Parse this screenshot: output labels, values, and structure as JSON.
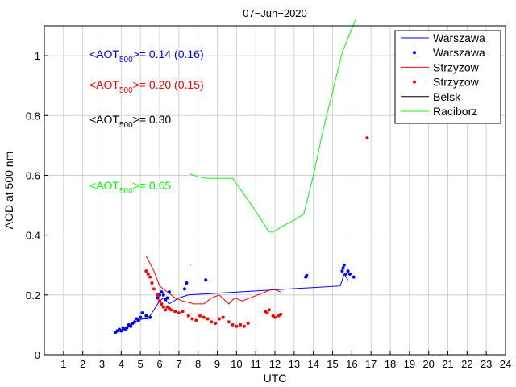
{
  "chart_data": {
    "type": "line",
    "title": "07−Jun−2020",
    "xlabel": "UTC",
    "ylabel": "AOD at 500 nm",
    "xlim": [
      0,
      24
    ],
    "ylim": [
      0,
      1.1
    ],
    "xticks": [
      1,
      2,
      3,
      4,
      5,
      6,
      7,
      8,
      9,
      10,
      11,
      12,
      13,
      14,
      15,
      16,
      17,
      18,
      19,
      20,
      21,
      22,
      23,
      24
    ],
    "yticks": [
      0,
      0.2,
      0.4,
      0.6,
      0.8,
      1
    ],
    "ytick_labels": [
      "0",
      "0.2",
      "0.4",
      "0.6",
      "0.8",
      "1"
    ],
    "grid": true,
    "legend_position": "top-right",
    "series": [
      {
        "name": "Warszawa",
        "style": "line",
        "color": "#0000ff",
        "x": [
          3.9,
          4.2,
          4.5,
          4.8,
          5.1,
          5.4,
          5.7,
          6.0,
          6.2,
          6.5,
          7.0,
          7.5,
          15.4,
          15.6,
          15.8
        ],
        "y": [
          0.08,
          0.09,
          0.1,
          0.11,
          0.12,
          0.12,
          0.15,
          0.18,
          0.19,
          0.17,
          0.19,
          0.2,
          0.23,
          0.27,
          0.25
        ]
      },
      {
        "name": "Warszawa",
        "style": "dots",
        "color": "#0000ff",
        "x": [
          3.7,
          3.8,
          3.9,
          4.0,
          4.1,
          4.2,
          4.3,
          4.4,
          4.5,
          4.6,
          4.7,
          4.8,
          4.9,
          5.0,
          5.1,
          5.3,
          5.5,
          5.9,
          6.0,
          6.1,
          6.2,
          6.3,
          6.4,
          6.5,
          7.3,
          7.4,
          8.4,
          13.6,
          13.65,
          15.5,
          15.55,
          15.6,
          15.7,
          15.8,
          15.9,
          16.1
        ],
        "y": [
          0.075,
          0.08,
          0.085,
          0.08,
          0.09,
          0.085,
          0.09,
          0.1,
          0.095,
          0.105,
          0.11,
          0.12,
          0.115,
          0.125,
          0.14,
          0.13,
          0.125,
          0.19,
          0.2,
          0.21,
          0.2,
          0.185,
          0.19,
          0.21,
          0.22,
          0.24,
          0.25,
          0.26,
          0.265,
          0.28,
          0.29,
          0.3,
          0.27,
          0.28,
          0.27,
          0.26
        ]
      },
      {
        "name": "Strzyzow",
        "style": "line",
        "color": "#ff0000",
        "x": [
          5.3,
          5.7,
          6.0,
          6.4,
          6.8,
          7.2,
          7.8,
          8.3,
          8.7,
          9.1,
          9.6,
          9.9,
          10.3,
          10.7,
          11.1,
          11.5,
          11.9,
          12.3
        ],
        "y": [
          0.33,
          0.28,
          0.23,
          0.21,
          0.19,
          0.18,
          0.17,
          0.17,
          0.19,
          0.2,
          0.17,
          0.19,
          0.18,
          0.19,
          0.2,
          0.21,
          0.22,
          0.21
        ]
      },
      {
        "name": "Strzyzow",
        "style": "dots",
        "color": "#ff0000",
        "x": [
          5.3,
          5.4,
          5.5,
          5.6,
          5.7,
          5.9,
          6.0,
          6.1,
          6.2,
          6.3,
          6.4,
          6.5,
          6.6,
          6.8,
          7.0,
          7.2,
          7.5,
          7.7,
          7.9,
          8.1,
          8.3,
          8.5,
          8.7,
          8.9,
          9.1,
          9.3,
          9.6,
          9.8,
          10.0,
          10.2,
          10.4,
          10.6,
          11.5,
          11.6,
          11.7,
          11.9,
          12.0,
          12.2,
          12.3,
          16.8
        ],
        "y": [
          0.28,
          0.27,
          0.26,
          0.24,
          0.22,
          0.2,
          0.18,
          0.17,
          0.16,
          0.15,
          0.16,
          0.155,
          0.15,
          0.145,
          0.14,
          0.145,
          0.13,
          0.12,
          0.115,
          0.13,
          0.125,
          0.12,
          0.11,
          0.105,
          0.12,
          0.125,
          0.11,
          0.1,
          0.095,
          0.1,
          0.095,
          0.105,
          0.145,
          0.14,
          0.15,
          0.13,
          0.125,
          0.13,
          0.135,
          0.725
        ]
      },
      {
        "name": "Belsk",
        "style": "line",
        "color": "#000000",
        "x": [
          7.6,
          7.62
        ],
        "y": [
          0.3,
          0.3
        ]
      },
      {
        "name": "Raciborz",
        "style": "line",
        "color": "#00ff00",
        "x": [
          7.6,
          8.0,
          8.5,
          9.0,
          9.5,
          9.8,
          11.0,
          11.7,
          11.9,
          12.4,
          13.0,
          13.5,
          14.0,
          14.5,
          15.0,
          15.5,
          16.0,
          16.2
        ],
        "y": [
          0.605,
          0.595,
          0.59,
          0.59,
          0.59,
          0.59,
          0.48,
          0.41,
          0.41,
          0.43,
          0.45,
          0.47,
          0.6,
          0.75,
          0.88,
          1.01,
          1.09,
          1.12
        ]
      }
    ],
    "annotations": [
      {
        "id": "waw",
        "color": "#0000ff",
        "prefix": "<AOT",
        "sub": "500",
        "suffix": ">= 0.14 (0.16)"
      },
      {
        "id": "str",
        "color": "#ff0000",
        "prefix": "<AOT",
        "sub": "500",
        "suffix": ">= 0.20 (0.15)"
      },
      {
        "id": "bel",
        "color": "#000000",
        "prefix": "<AOT",
        "sub": "500",
        "suffix": ">= 0.30"
      },
      {
        "id": "rac",
        "color": "#00ff00",
        "prefix": "<AOT",
        "sub": "500",
        "suffix": ">= 0.65"
      }
    ]
  }
}
